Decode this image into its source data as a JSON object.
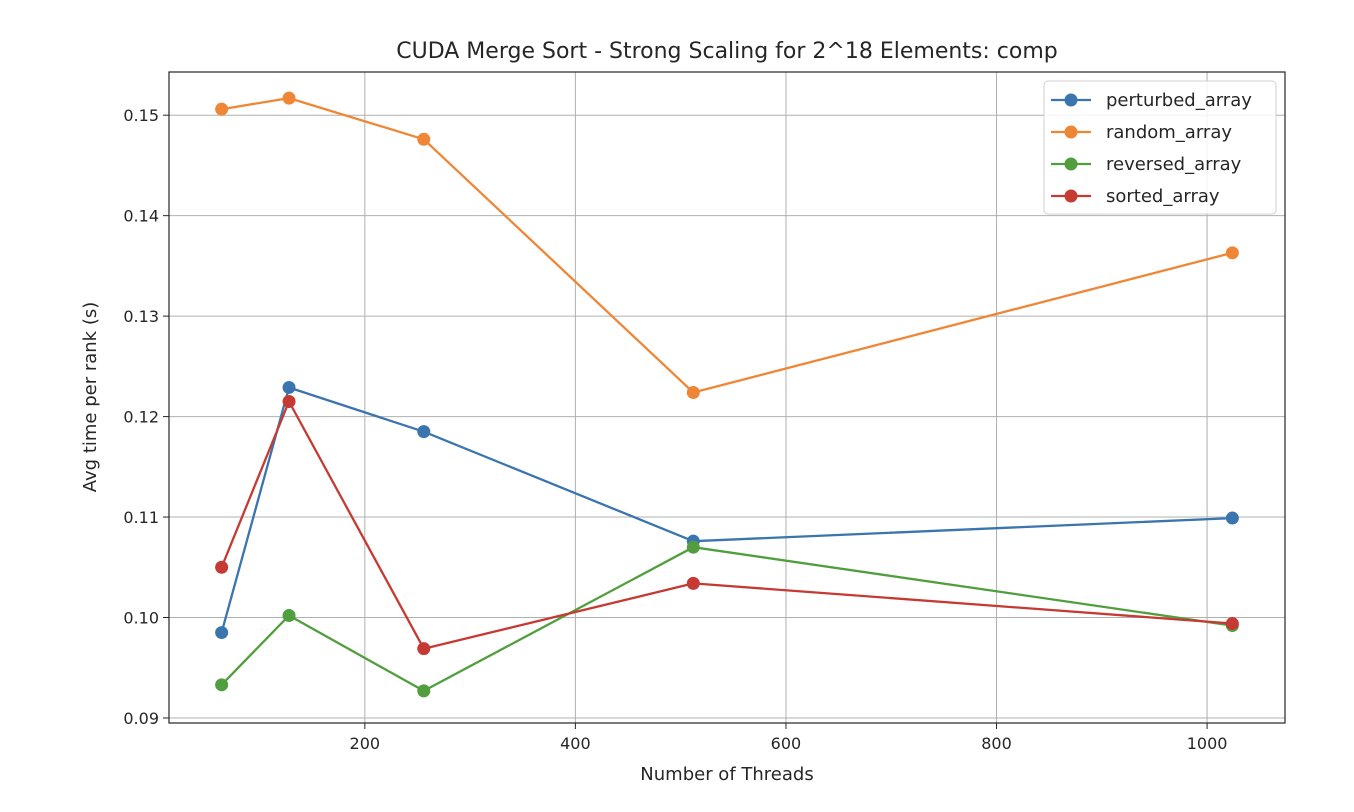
{
  "chart_data": {
    "type": "line",
    "title": "CUDA Merge Sort - Strong Scaling for 2^18 Elements: comp",
    "xlabel": "Number of Threads",
    "ylabel": "Avg time per rank (s)",
    "xlim": [
      14,
      1074
    ],
    "ylim": [
      0.0895,
      0.1543
    ],
    "xticks": [
      200,
      400,
      600,
      800,
      1000
    ],
    "yticks": [
      0.09,
      0.1,
      0.11,
      0.12,
      0.13,
      0.14,
      0.15
    ],
    "xtick_labels": [
      "200",
      "400",
      "600",
      "800",
      "1000"
    ],
    "ytick_labels": [
      "0.09",
      "0.10",
      "0.11",
      "0.12",
      "0.13",
      "0.14",
      "0.15"
    ],
    "grid": true,
    "legend_position": "top-right",
    "x": [
      64,
      128,
      256,
      512,
      1024
    ],
    "series": [
      {
        "name": "perturbed_array",
        "color": "#3b75af",
        "values": [
          0.0985,
          0.1229,
          0.1185,
          0.1076,
          0.1099
        ]
      },
      {
        "name": "random_array",
        "color": "#ef8636",
        "values": [
          0.1506,
          0.1517,
          0.1476,
          0.1224,
          0.1363
        ]
      },
      {
        "name": "reversed_array",
        "color": "#519e3e",
        "values": [
          0.0933,
          0.1002,
          0.0927,
          0.107,
          0.0992
        ]
      },
      {
        "name": "sorted_array",
        "color": "#c53a32",
        "values": [
          0.105,
          0.1215,
          0.0969,
          0.1034,
          0.0994
        ]
      }
    ]
  }
}
